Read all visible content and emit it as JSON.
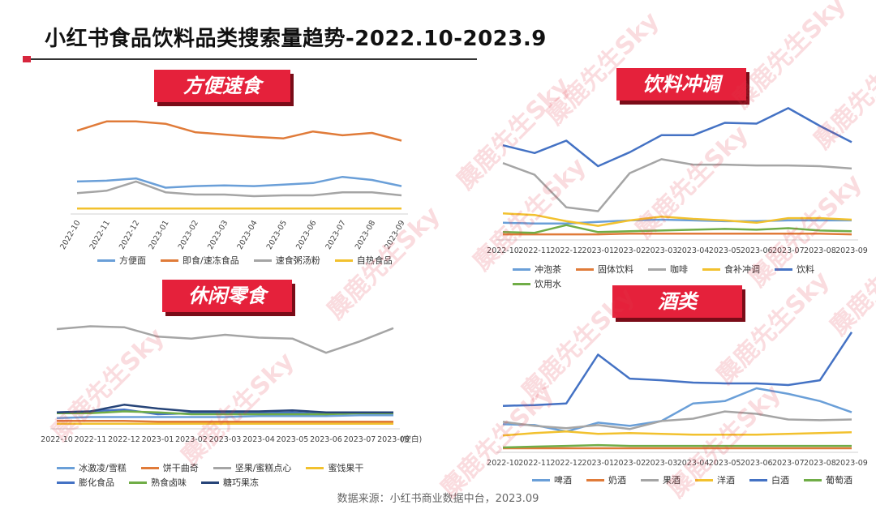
{
  "page": {
    "title": "小红书食品饮料品类搜索量趋势-2022.10-2023.9",
    "source": "数据来源：小红书商业数据中台，2023.09",
    "watermark": "麋鹿先生Sky"
  },
  "sections": {
    "instant_food": "方便速食",
    "beverage": "饮料冲调",
    "snacks": "休闲零食",
    "alcohol": "酒类"
  },
  "chart_data": [
    {
      "type": "line",
      "title": "方便速食",
      "categories": [
        "2022-10",
        "2022-11",
        "2022-12",
        "2023-01",
        "2023-02",
        "2023-03",
        "2023-04",
        "2023-05",
        "2023-06",
        "2023-07",
        "2023-08",
        "2023-09"
      ],
      "ylim": [
        0,
        120
      ],
      "grid": false,
      "legend": "bottom",
      "series": [
        {
          "name": "方便面",
          "color": "#6a9fd8",
          "values": [
            38,
            39,
            42,
            30,
            32,
            33,
            32,
            34,
            36,
            44,
            40,
            32
          ]
        },
        {
          "name": "即食/速冻食品",
          "color": "#e07b39",
          "values": [
            104,
            116,
            116,
            113,
            102,
            99,
            96,
            94,
            103,
            98,
            101,
            91
          ]
        },
        {
          "name": "速食粥汤粉",
          "color": "#a5a5a5",
          "values": [
            23,
            26,
            38,
            24,
            21,
            21,
            19,
            20,
            20,
            24,
            24,
            20
          ]
        },
        {
          "name": "自热食品",
          "color": "#f2c12e",
          "values": [
            3,
            3,
            3,
            3,
            3,
            3,
            3,
            3,
            3,
            3,
            3,
            3
          ]
        }
      ]
    },
    {
      "type": "line",
      "title": "饮料冲调",
      "categories": [
        "2022-10",
        "2022-11",
        "2022-12",
        "2023-01",
        "2023-02",
        "2023-03",
        "2023-04",
        "2023-05",
        "2023-06",
        "2023-07",
        "2023-08",
        "2023-09"
      ],
      "ylim": [
        0,
        180
      ],
      "grid": false,
      "legend": "bottom",
      "series": [
        {
          "name": "冲泡茶",
          "color": "#6a9fd8",
          "values": [
            18,
            17,
            17,
            19,
            21,
            22,
            21,
            20,
            20,
            21,
            21,
            21
          ]
        },
        {
          "name": "固体饮料",
          "color": "#e07b39",
          "values": [
            3,
            3,
            3,
            3,
            4,
            4,
            4,
            4,
            4,
            4,
            4,
            3
          ]
        },
        {
          "name": "咖啡",
          "color": "#a5a5a5",
          "values": [
            95,
            80,
            38,
            33,
            82,
            100,
            93,
            93,
            92,
            92,
            91,
            88
          ]
        },
        {
          "name": "食补冲调",
          "color": "#f2c12e",
          "values": [
            30,
            28,
            20,
            14,
            21,
            26,
            23,
            21,
            18,
            24,
            24,
            22
          ]
        },
        {
          "name": "饮料",
          "color": "#4472c4",
          "values": [
            118,
            108,
            124,
            91,
            109,
            131,
            131,
            147,
            146,
            166,
            143,
            122
          ]
        },
        {
          "name": "饮用水",
          "color": "#70ad47",
          "values": [
            6,
            5,
            15,
            6,
            7,
            8,
            9,
            10,
            9,
            11,
            8,
            7
          ]
        }
      ]
    },
    {
      "type": "line",
      "title": "休闲零食",
      "categories": [
        "2022-10",
        "2022-11",
        "2022-12",
        "2023-01",
        "2023-02",
        "2023-03",
        "2023-04",
        "2023-05",
        "2023-06",
        "2023-07",
        "2023-08"
      ],
      "ylim": [
        0,
        120
      ],
      "grid": false,
      "legend": "bottom",
      "series": [
        {
          "name": "冰激凌/雪糕",
          "color": "#6a9fd8",
          "values": [
            8,
            9,
            9,
            9,
            9,
            9,
            10,
            10,
            10,
            11,
            11
          ]
        },
        {
          "name": "饼干曲奇",
          "color": "#e07b39",
          "values": [
            5,
            5,
            5,
            4,
            4,
            4,
            4,
            4,
            4,
            4,
            4
          ]
        },
        {
          "name": "坚果/蜜糕点心",
          "color": "#a5a5a5",
          "values": [
            102,
            105,
            104,
            94,
            92,
            96,
            93,
            92,
            77,
            89,
            103
          ]
        },
        {
          "name": "蜜饯果干",
          "color": "#f2c12e",
          "values": [
            2,
            2,
            2,
            2,
            2,
            2,
            2,
            2,
            2,
            2,
            2
          ]
        },
        {
          "name": "膨化食品",
          "color": "#4472c4",
          "values": [
            14,
            15,
            17,
            12,
            13,
            13,
            13,
            14,
            12,
            14,
            13
          ]
        },
        {
          "name": "熟食卤味",
          "color": "#70ad47",
          "values": [
            13,
            13,
            15,
            14,
            12,
            12,
            12,
            12,
            12,
            13,
            13
          ]
        },
        {
          "name": "糖巧果冻",
          "color": "#264478",
          "values": [
            14,
            15,
            22,
            18,
            15,
            15,
            15,
            16,
            14,
            14,
            14
          ]
        }
      ]
    },
    {
      "type": "line",
      "title": "酒类",
      "categories": [
        "2022-10",
        "2022-11",
        "2022-12",
        "2023-01",
        "2023-02",
        "2023-03",
        "2023-04",
        "2023-05",
        "2023-06",
        "2023-07",
        "2023-08",
        "2023-09"
      ],
      "ylim": [
        0,
        160
      ],
      "grid": false,
      "legend": "bottom",
      "series": [
        {
          "name": "啤酒",
          "color": "#6a9fd8",
          "values": [
            31,
            30,
            22,
            33,
            29,
            35,
            57,
            60,
            76,
            69,
            60,
            46
          ]
        },
        {
          "name": "奶酒",
          "color": "#e07b39",
          "values": [
            1,
            1,
            1,
            1,
            1,
            1,
            1,
            1,
            1,
            1,
            1,
            1
          ]
        },
        {
          "name": "果酒",
          "color": "#a5a5a5",
          "values": [
            34,
            29,
            26,
            30,
            25,
            35,
            38,
            47,
            44,
            37,
            36,
            37
          ]
        },
        {
          "name": "洋酒",
          "color": "#f2c12e",
          "values": [
            17,
            20,
            22,
            19,
            20,
            19,
            18,
            18,
            18,
            19,
            20,
            21
          ]
        },
        {
          "name": "白酒",
          "color": "#4472c4",
          "values": [
            54,
            55,
            57,
            118,
            88,
            86,
            83,
            82,
            82,
            80,
            86,
            146
          ]
        },
        {
          "name": "葡萄酒",
          "color": "#70ad47",
          "values": [
            2,
            3,
            4,
            5,
            4,
            4,
            4,
            4,
            4,
            4,
            4,
            4
          ]
        }
      ]
    }
  ],
  "axis_notes": {
    "snacks_empty_label": "(空白)"
  }
}
